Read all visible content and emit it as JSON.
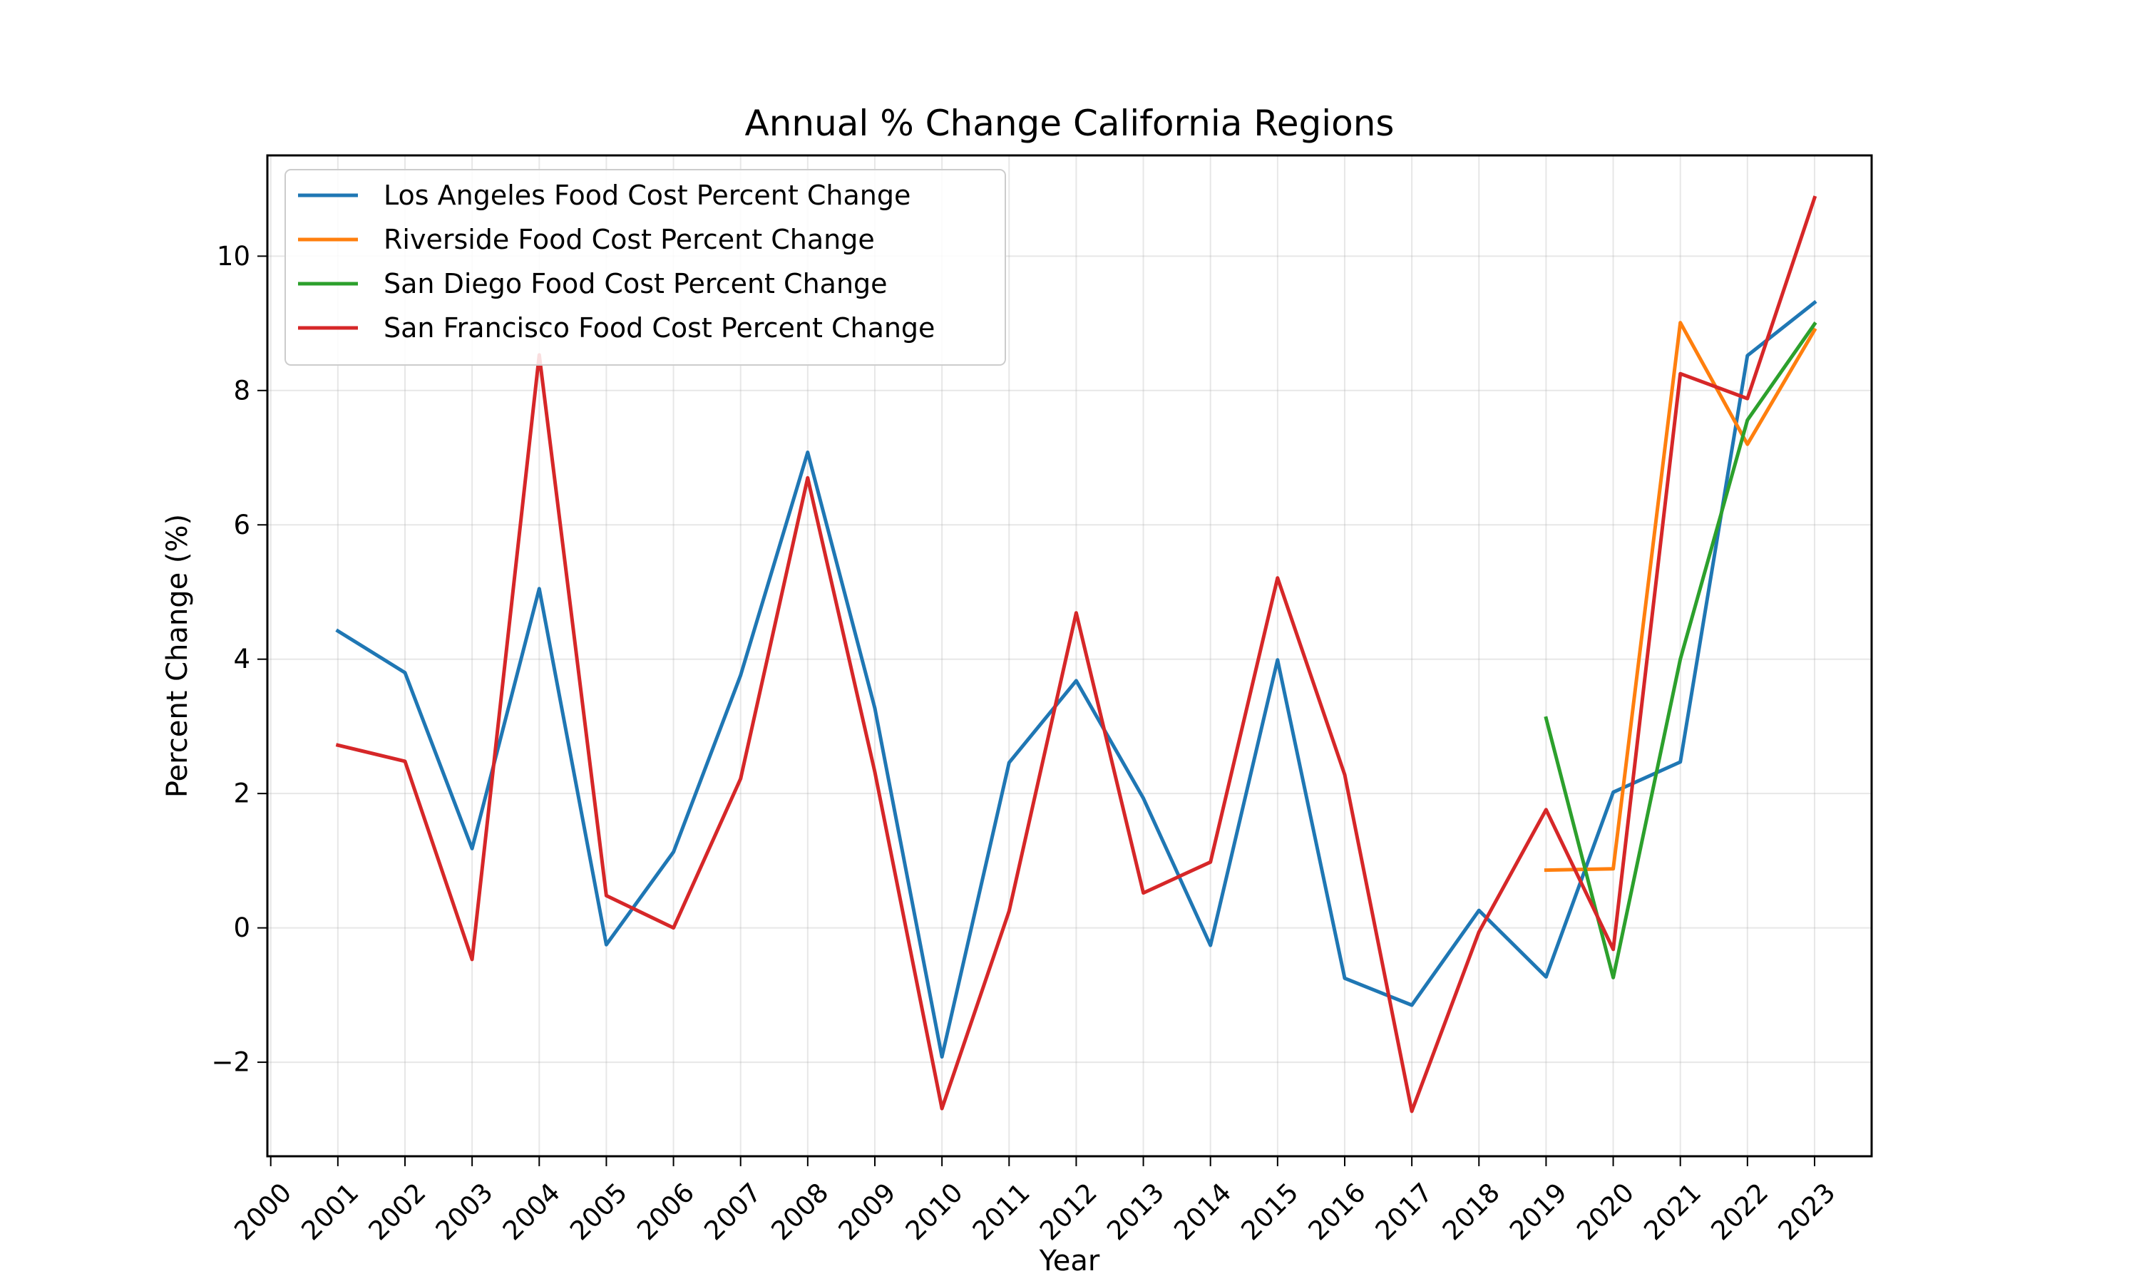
{
  "chart_data": {
    "type": "line",
    "title": "Annual % Change California Regions",
    "xlabel": "Year",
    "ylabel": "Percent Change (%)",
    "xlim": [
      1999.95,
      2023.85
    ],
    "ylim": [
      -3.4,
      11.5
    ],
    "x_ticks": [
      2000,
      2001,
      2002,
      2003,
      2004,
      2005,
      2006,
      2007,
      2008,
      2009,
      2010,
      2011,
      2012,
      2013,
      2014,
      2015,
      2016,
      2017,
      2018,
      2019,
      2020,
      2021,
      2022,
      2023
    ],
    "y_ticks": [
      -2,
      0,
      2,
      4,
      6,
      8,
      10
    ],
    "y_tick_labels": [
      "−2",
      "0",
      "2",
      "4",
      "6",
      "8",
      "10"
    ],
    "grid": true,
    "legend_position": "top-left",
    "series": [
      {
        "name": "Los Angeles Food Cost Percent Change",
        "color": "#1f77b4",
        "x": [
          2001,
          2002,
          2003,
          2004,
          2005,
          2006,
          2007,
          2008,
          2009,
          2010,
          2011,
          2012,
          2013,
          2014,
          2015,
          2016,
          2017,
          2018,
          2019,
          2020,
          2021,
          2022,
          2023
        ],
        "values": [
          4.42,
          3.8,
          1.18,
          5.05,
          -0.25,
          1.13,
          3.76,
          7.08,
          3.27,
          -1.92,
          2.46,
          3.68,
          1.93,
          -0.26,
          3.99,
          -0.75,
          -1.15,
          0.26,
          -0.73,
          2.02,
          2.47,
          8.52,
          9.31
        ]
      },
      {
        "name": "Riverside Food Cost Percent Change",
        "color": "#ff7f0e",
        "x": [
          2019,
          2020,
          2021,
          2022,
          2023
        ],
        "values": [
          0.86,
          0.88,
          9.01,
          7.2,
          8.9
        ]
      },
      {
        "name": "San Diego Food Cost Percent Change",
        "color": "#2ca02c",
        "x": [
          2019,
          2020,
          2021,
          2022,
          2023
        ],
        "values": [
          3.12,
          -0.74,
          4.0,
          7.56,
          8.99
        ]
      },
      {
        "name": "San Francisco Food Cost Percent Change",
        "color": "#d62728",
        "x": [
          2001,
          2002,
          2003,
          2004,
          2005,
          2006,
          2007,
          2008,
          2009,
          2010,
          2011,
          2012,
          2013,
          2014,
          2015,
          2016,
          2017,
          2018,
          2019,
          2020,
          2021,
          2022,
          2023
        ],
        "values": [
          2.72,
          2.48,
          -0.47,
          8.53,
          0.48,
          0.0,
          2.22,
          6.7,
          2.32,
          -2.69,
          0.25,
          4.69,
          0.52,
          0.98,
          5.21,
          2.28,
          -2.73,
          -0.06,
          1.76,
          -0.32,
          8.25,
          7.88,
          10.87
        ]
      }
    ]
  }
}
